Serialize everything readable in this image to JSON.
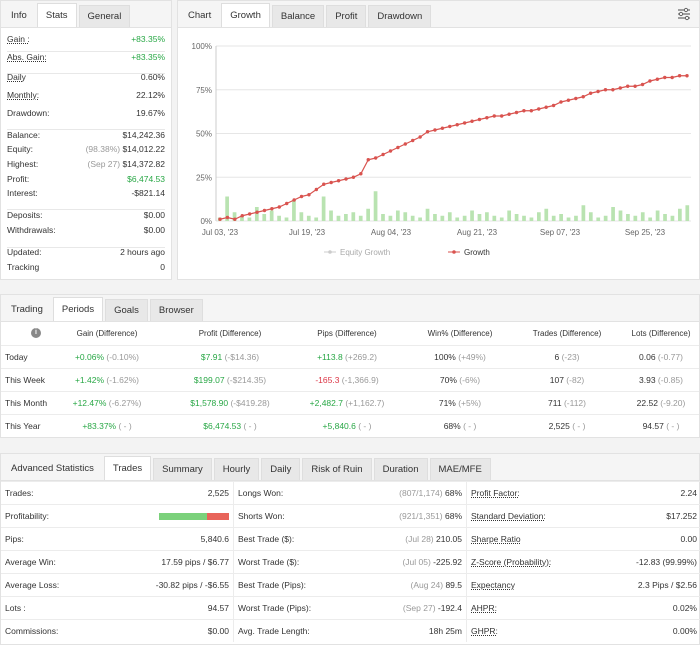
{
  "info": {
    "tabs": [
      "Info",
      "Stats",
      "General"
    ],
    "rows": [
      {
        "label": "Gain :",
        "value": "+83.35%",
        "cls": "green",
        "u": true
      },
      {
        "label": "Abs. Gain:",
        "value": "+83.35%",
        "cls": "green",
        "u": true
      },
      {
        "label": "Daily",
        "value": "0.60%",
        "u": true
      },
      {
        "label": "Monthly:",
        "value": "22.12%",
        "u": true
      },
      {
        "label": "Drawdown:",
        "value": "19.67%"
      },
      {
        "label": "Balance:",
        "value": "$14,242.36"
      },
      {
        "label": "Equity:",
        "note": "(98.38%)",
        "value": "$14,012.22"
      },
      {
        "label": "Highest:",
        "note": "(Sep 27)",
        "value": "$14,372.82"
      },
      {
        "label": "Profit:",
        "value": "$6,474.53",
        "cls": "green"
      },
      {
        "label": "Interest:",
        "value": "-$821.14"
      },
      {
        "label": "Deposits:",
        "value": "$0.00"
      },
      {
        "label": "Withdrawals:",
        "value": "$0.00"
      },
      {
        "label": "Updated:",
        "value": "2 hours ago"
      },
      {
        "label": "Tracking",
        "value": "0"
      }
    ]
  },
  "chart_panel": {
    "tabs": [
      "Chart",
      "Growth",
      "Balance",
      "Profit",
      "Drawdown"
    ],
    "settings_icon": "sliders-icon"
  },
  "chart_data": {
    "type": "line",
    "y_ticks": [
      "100%",
      "75%",
      "50%",
      "25%",
      "0%"
    ],
    "x_ticks": [
      "Jul 03, '23",
      "Jul 19, '23",
      "Aug 04, '23",
      "Aug 21, '23",
      "Sep 07, '23",
      "Sep 25, '23"
    ],
    "ylim": [
      0,
      100
    ],
    "legend": [
      "Equity Growth",
      "Growth"
    ],
    "series": [
      {
        "name": "Growth",
        "color": "#d9534f",
        "values": [
          1,
          2,
          1,
          3,
          4,
          5,
          6,
          7,
          8,
          10,
          12,
          14,
          15,
          18,
          21,
          22,
          23,
          24,
          25,
          27,
          35,
          36,
          38,
          40,
          42,
          44,
          46,
          48,
          51,
          52,
          53,
          54,
          55,
          56,
          57,
          58,
          59,
          60,
          60,
          61,
          62,
          63,
          63,
          64,
          65,
          66,
          68,
          69,
          70,
          71,
          73,
          74,
          75,
          75,
          76,
          77,
          77,
          78,
          80,
          81,
          82,
          82,
          83,
          83
        ]
      },
      {
        "name": "Equity Growth",
        "color": "#b9e3b1",
        "type": "bar",
        "values": [
          2,
          14,
          5,
          3,
          2,
          8,
          4,
          6,
          3,
          2,
          12,
          5,
          3,
          2,
          14,
          6,
          3,
          4,
          5,
          3,
          7,
          17,
          4,
          3,
          6,
          5,
          3,
          2,
          7,
          4,
          3,
          5,
          2,
          3,
          6,
          4,
          5,
          3,
          2,
          6,
          4,
          3,
          2,
          5,
          7,
          3,
          4,
          2,
          3,
          9,
          5,
          2,
          3,
          8,
          6,
          4,
          3,
          5,
          2,
          6,
          4,
          3,
          7,
          9
        ]
      }
    ]
  },
  "periods": {
    "tabs": [
      "Trading",
      "Periods",
      "Goals",
      "Browser"
    ],
    "headers": [
      "Gain (Difference)",
      "Profit (Difference)",
      "Pips (Difference)",
      "Win% (Difference)",
      "Trades (Difference)",
      "Lots (Difference)"
    ],
    "rows": [
      {
        "name": "Today",
        "gain": "+0.06%",
        "gain_d": "(-0.10%)",
        "gain_c": "green",
        "profit": "$7.91",
        "profit_d": "(-$14.36)",
        "profit_c": "green",
        "pips": "+113.8",
        "pips_d": "(+269.2)",
        "pips_c": "green",
        "win": "100%",
        "win_d": "(+49%)",
        "trades": "6",
        "trades_d": "(-23)",
        "lots": "0.06",
        "lots_d": "(-0.77)"
      },
      {
        "name": "This Week",
        "gain": "+1.42%",
        "gain_d": "(-1.62%)",
        "gain_c": "green",
        "profit": "$199.07",
        "profit_d": "(-$214.35)",
        "profit_c": "green",
        "pips": "-165.3",
        "pips_d": "(-1,366.9)",
        "pips_c": "red",
        "win": "70%",
        "win_d": "(-6%)",
        "trades": "107",
        "trades_d": "(-82)",
        "lots": "3.93",
        "lots_d": "(-0.85)"
      },
      {
        "name": "This Month",
        "gain": "+12.47%",
        "gain_d": "(-6.27%)",
        "gain_c": "green",
        "profit": "$1,578.90",
        "profit_d": "(-$419.28)",
        "profit_c": "green",
        "pips": "+2,482.7",
        "pips_d": "(+1,162.7)",
        "pips_c": "green",
        "win": "71%",
        "win_d": "(+5%)",
        "trades": "711",
        "trades_d": "(-112)",
        "lots": "22.52",
        "lots_d": "(-9.20)"
      },
      {
        "name": "This Year",
        "gain": "+83.37%",
        "gain_d": "( - )",
        "gain_c": "green",
        "profit": "$6,474.53",
        "profit_d": "( - )",
        "profit_c": "green",
        "pips": "+5,840.6",
        "pips_d": "( - )",
        "pips_c": "green",
        "win": "68%",
        "win_d": "( - )",
        "trades": "2,525",
        "trades_d": "( - )",
        "lots": "94.57",
        "lots_d": "( - )"
      }
    ]
  },
  "advanced": {
    "tabs": [
      "Advanced Statistics",
      "Trades",
      "Summary",
      "Hourly",
      "Daily",
      "Risk of Ruin",
      "Duration",
      "MAE/MFE"
    ],
    "col1": [
      {
        "label": "Trades:",
        "value": "2,525"
      },
      {
        "label": "Profitability:",
        "bar": true,
        "win_fraction": 0.68
      },
      {
        "label": "Pips:",
        "value": "5,840.6"
      },
      {
        "label": "Average Win:",
        "value": "17.59 pips / $6.77"
      },
      {
        "label": "Average Loss:",
        "value": "-30.82 pips / -$6.55"
      },
      {
        "label": "Lots :",
        "value": "94.57"
      },
      {
        "label": "Commissions:",
        "value": "$0.00"
      }
    ],
    "col2": [
      {
        "label": "Longs Won:",
        "note": "(807/1,174)",
        "value": "68%"
      },
      {
        "label": "Shorts Won:",
        "note": "(921/1,351)",
        "value": "68%"
      },
      {
        "label": "Best Trade ($):",
        "note": "(Jul 28)",
        "value": "210.05"
      },
      {
        "label": "Worst Trade ($):",
        "note": "(Jul 05)",
        "value": "-225.92"
      },
      {
        "label": "Best Trade (Pips):",
        "note": "(Aug 24)",
        "value": "89.5"
      },
      {
        "label": "Worst Trade (Pips):",
        "note": "(Sep 27)",
        "value": "-192.4"
      },
      {
        "label": "Avg. Trade Length:",
        "value": "18h 25m"
      }
    ],
    "col3": [
      {
        "label": "Profit Factor:",
        "value": "2.24",
        "u": true
      },
      {
        "label": "Standard Deviation:",
        "value": "$17.252",
        "u": true
      },
      {
        "label": "Sharpe Ratio",
        "value": "0.00",
        "u": true
      },
      {
        "label": "Z-Score (Probability):",
        "value": "-12.83 (99.99%)",
        "u": true
      },
      {
        "label": "Expectancy",
        "value": "2.3 Pips / $2.56",
        "u": true
      },
      {
        "label": "AHPR:",
        "value": "0.02%",
        "u": true
      },
      {
        "label": "GHPR:",
        "value": "0.00%",
        "u": true
      }
    ]
  }
}
